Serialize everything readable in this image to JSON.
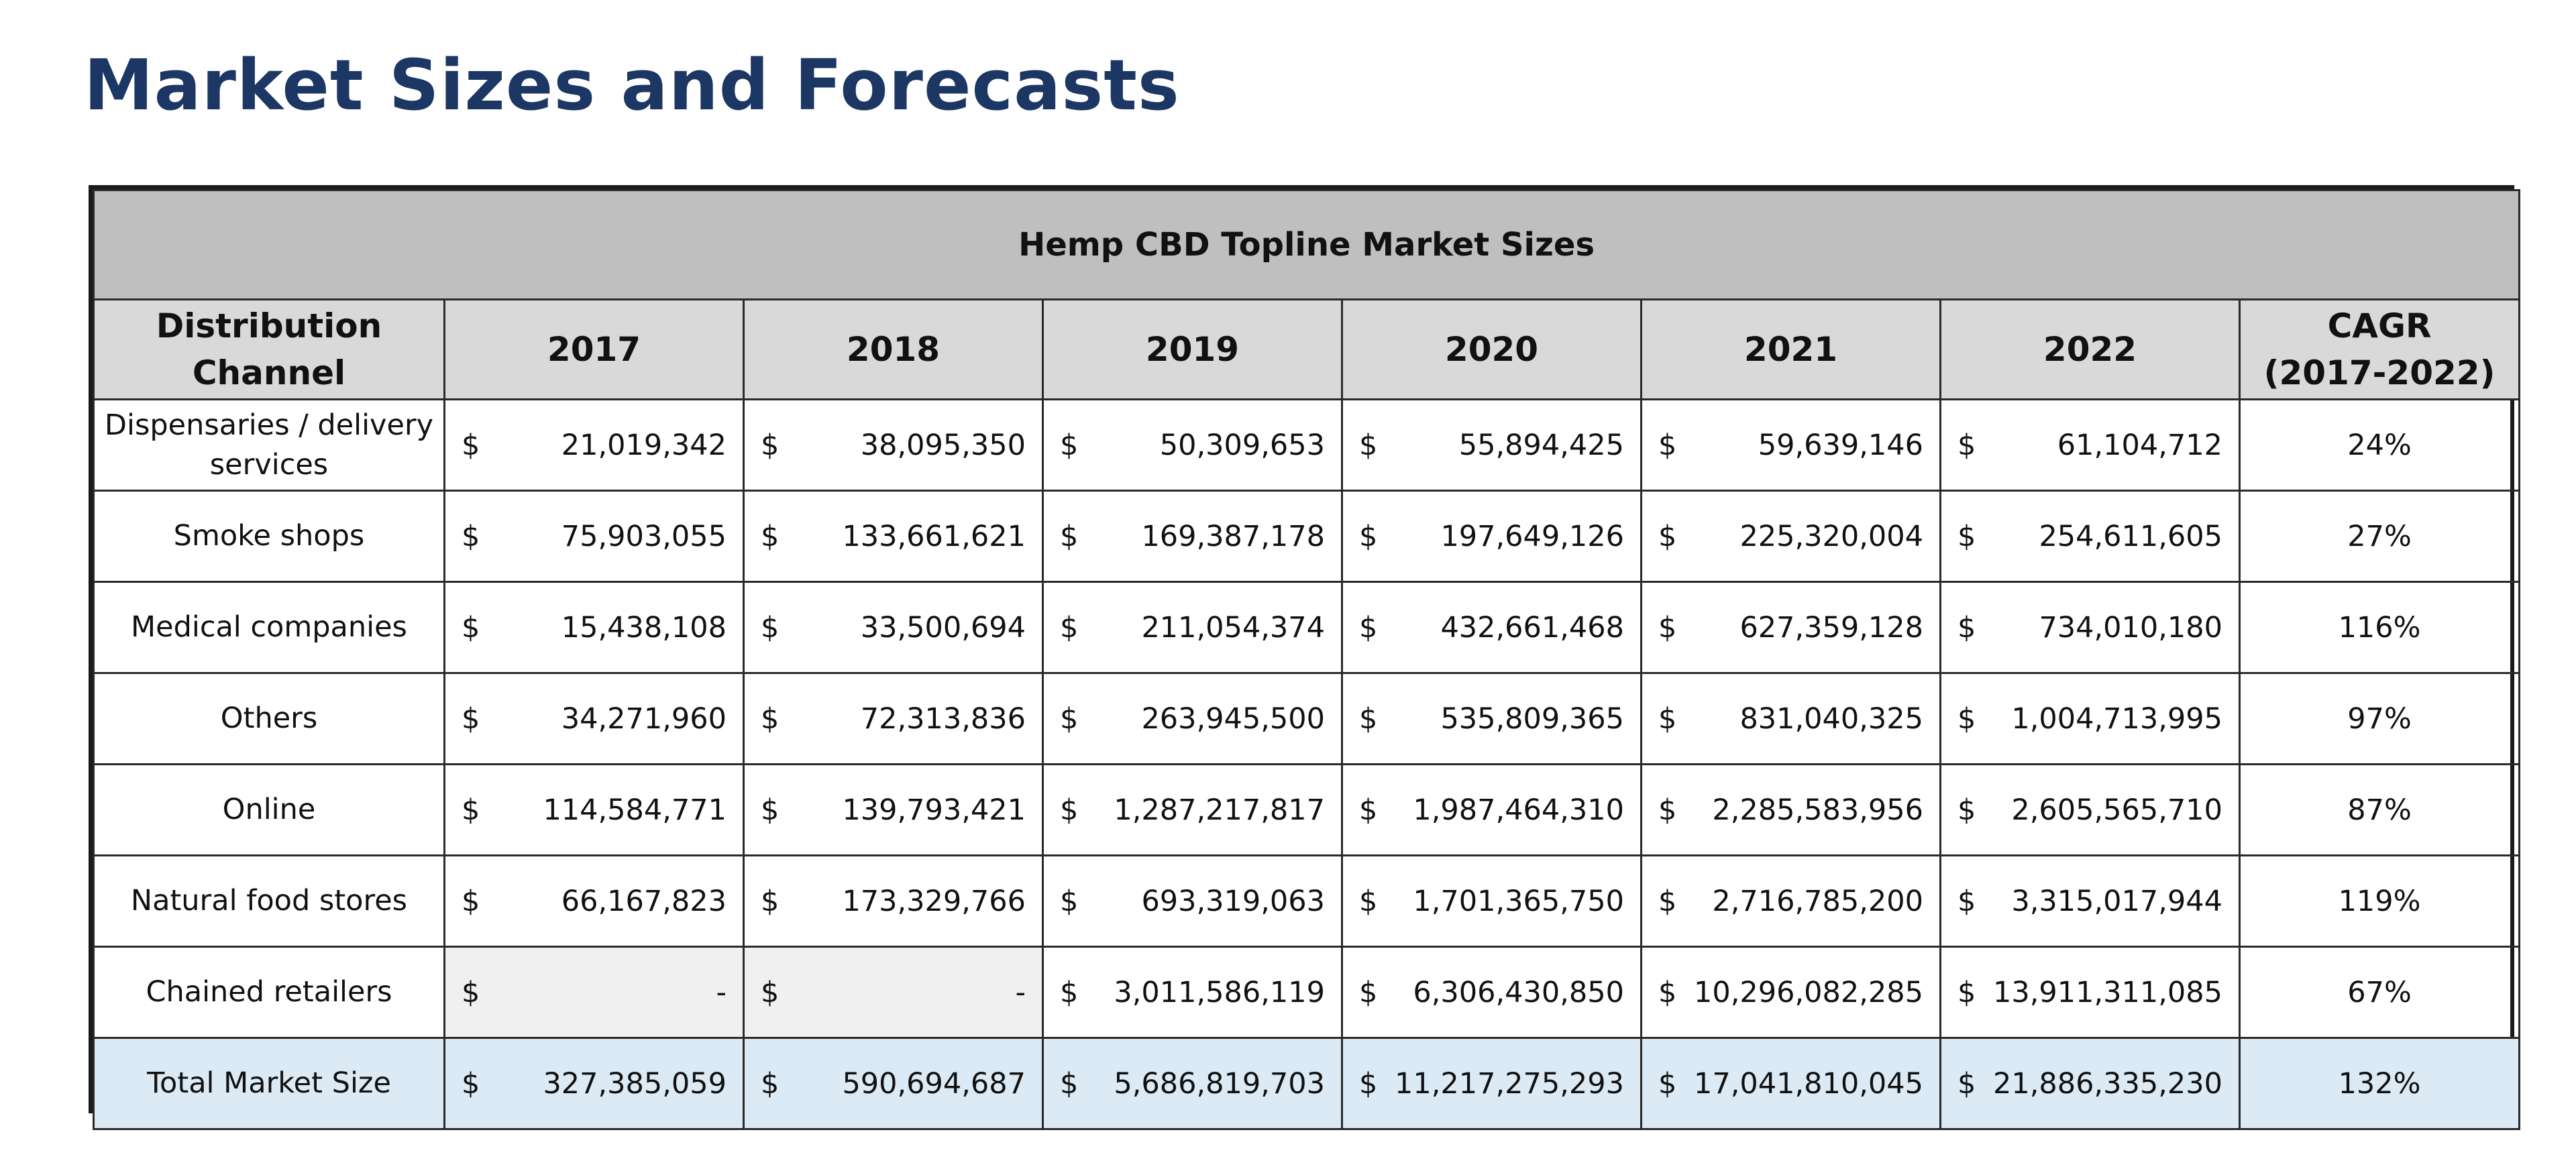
{
  "page": {
    "title": "Market Sizes and Forecasts"
  },
  "table": {
    "title": "Hemp CBD Topline Market Sizes",
    "headers": {
      "channel": "Distribution Channel",
      "years": [
        "2017",
        "2018",
        "2019",
        "2020",
        "2021",
        "2022"
      ],
      "cagr_line1": "CAGR",
      "cagr_line2": "(2017-2022)"
    },
    "currency_symbol": "$",
    "rows": [
      {
        "channel": "Dispensaries / delivery services",
        "values": [
          "21,019,342",
          "38,095,350",
          "50,309,653",
          "55,894,425",
          "59,639,146",
          "61,104,712"
        ],
        "cagr": "24%"
      },
      {
        "channel": "Smoke shops",
        "values": [
          "75,903,055",
          "133,661,621",
          "169,387,178",
          "197,649,126",
          "225,320,004",
          "254,611,605"
        ],
        "cagr": "27%"
      },
      {
        "channel": "Medical companies",
        "values": [
          "15,438,108",
          "33,500,694",
          "211,054,374",
          "432,661,468",
          "627,359,128",
          "734,010,180"
        ],
        "cagr": "116%"
      },
      {
        "channel": "Others",
        "values": [
          "34,271,960",
          "72,313,836",
          "263,945,500",
          "535,809,365",
          "831,040,325",
          "1,004,713,995"
        ],
        "cagr": "97%"
      },
      {
        "channel": "Online",
        "values": [
          "114,584,771",
          "139,793,421",
          "1,287,217,817",
          "1,987,464,310",
          "2,285,583,956",
          "2,605,565,710"
        ],
        "cagr": "87%"
      },
      {
        "channel": "Natural food stores",
        "values": [
          "66,167,823",
          "173,329,766",
          "693,319,063",
          "1,701,365,750",
          "2,716,785,200",
          "3,315,017,944"
        ],
        "cagr": "119%"
      },
      {
        "channel": "Chained retailers",
        "values": [
          "-",
          "-",
          "3,011,586,119",
          "6,306,430,850",
          "10,296,082,285",
          "13,911,311,085"
        ],
        "cagr": "67%"
      }
    ],
    "total": {
      "channel": "Total Market Size",
      "values": [
        "327,385,059",
        "590,694,687",
        "5,686,819,703",
        "11,217,275,293",
        "17,041,810,045",
        "21,886,335,230"
      ],
      "cagr": "132%"
    },
    "colors": {
      "title_text": "#1c3763",
      "title_band": "#bfbfbf",
      "header_band": "#d9d9d9",
      "total_row": "#dbeaf5",
      "empty_cell": "#f0f0f0"
    }
  }
}
